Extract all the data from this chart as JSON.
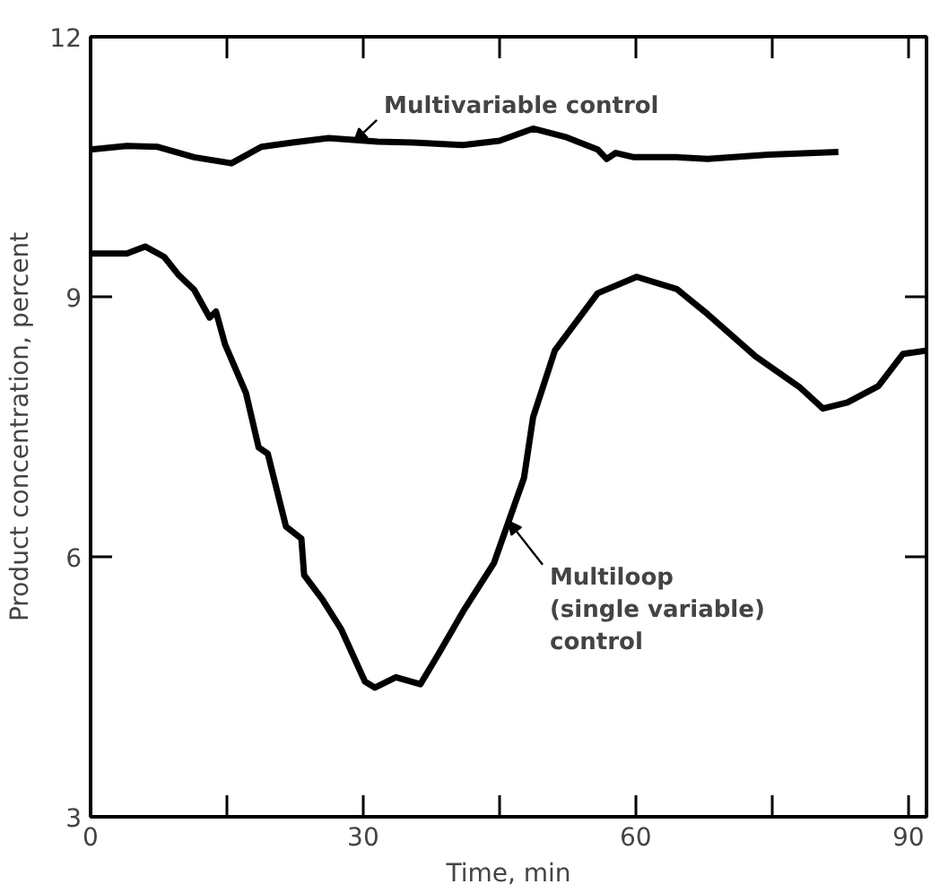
{
  "chart_data": {
    "type": "line",
    "xlabel": "Time, min",
    "ylabel": "Product concentration, percent",
    "xlim": [
      0,
      92
    ],
    "ylim": [
      3,
      12
    ],
    "xticks": [
      0,
      {
        "value": 15,
        "label": null
      },
      30,
      {
        "value": 45,
        "label": null
      },
      60,
      {
        "value": 75,
        "label": null
      },
      90
    ],
    "yticks": [
      3,
      6,
      9,
      12
    ],
    "grid": false,
    "marker": "none",
    "line_style": "solid",
    "series": [
      {
        "color": "#000000",
        "x": [
          0,
          4.0,
          7.4,
          11.4,
          15.5,
          18.8,
          22.2,
          26.2,
          31.6,
          35.6,
          41.0,
          45.0,
          48.7,
          52.4,
          55.8,
          56.8,
          57.8,
          59.8,
          64.5,
          67.9,
          74.6,
          82.3
        ],
        "values": [
          10.7,
          10.74,
          10.73,
          10.61,
          10.54,
          10.73,
          10.78,
          10.83,
          10.79,
          10.78,
          10.75,
          10.8,
          10.94,
          10.84,
          10.7,
          10.59,
          10.66,
          10.61,
          10.61,
          10.59,
          10.64,
          10.67
        ]
      },
      {
        "color": "#000000",
        "x": [
          0,
          4.0,
          6.0,
          8.1,
          9.7,
          11.4,
          13.1,
          13.8,
          14.8,
          17.1,
          18.5,
          19.5,
          21.5,
          23.2,
          23.5,
          25.5,
          27.6,
          30.2,
          31.3,
          33.6,
          36.3,
          38.3,
          41.0,
          44.4,
          47.7,
          48.7,
          51.1,
          55.8,
          60.1,
          64.5,
          67.9,
          73.2,
          78.0,
          80.6,
          83.3,
          86.7,
          89.4,
          92
        ],
        "values": [
          9.5,
          9.5,
          9.58,
          9.46,
          9.25,
          9.08,
          8.76,
          8.83,
          8.45,
          7.89,
          7.26,
          7.19,
          6.35,
          6.21,
          5.79,
          5.51,
          5.16,
          4.56,
          4.49,
          4.61,
          4.53,
          4.88,
          5.37,
          5.93,
          6.91,
          7.61,
          8.38,
          9.04,
          9.23,
          9.09,
          8.8,
          8.31,
          7.96,
          7.71,
          7.78,
          7.97,
          8.34,
          8.38
        ]
      }
    ],
    "annotations": [
      {
        "text": "Multivariable control",
        "x": 29,
        "y": 10.79
      },
      {
        "text": "Multiloop\n(single variable)\ncontrol",
        "x": 46,
        "y": 6.41
      }
    ]
  }
}
